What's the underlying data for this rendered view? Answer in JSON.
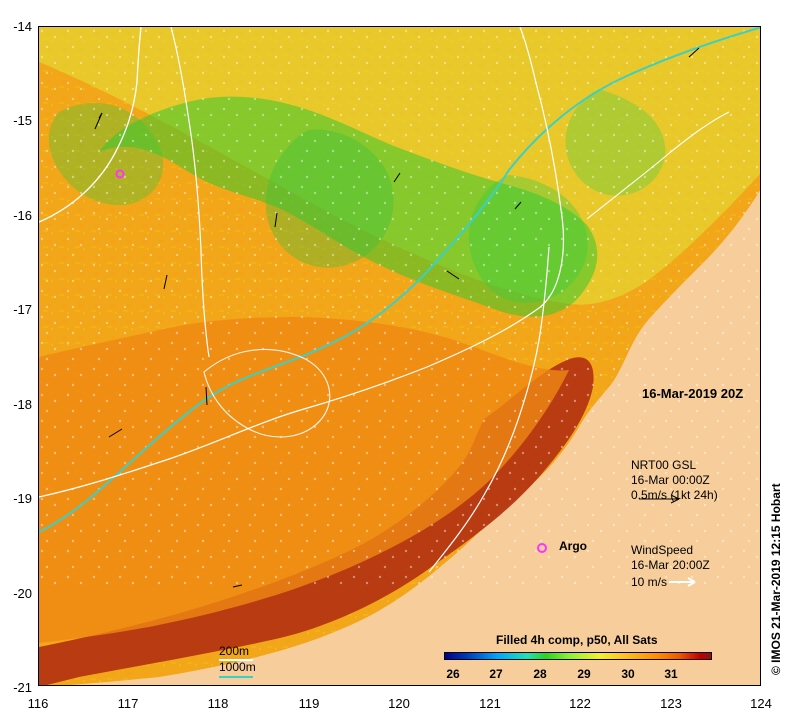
{
  "map": {
    "date_label": "16-Mar-2019 20Z",
    "composite_label": "Filled 4h comp, p50, All Sats",
    "argo_label": "Argo",
    "side_label": "© IMOS 21-Mar-2019 12:15 Hobart",
    "legend": {
      "gsl_title": "NRT00 GSL",
      "gsl_time": "16-Mar 00:00Z",
      "gsl_scale": "0.5m/s (1kt 24h)",
      "wind_title": "WindSpeed",
      "wind_time": "16-Mar 20:00Z",
      "wind_scale": "10 m/s",
      "contours": {
        "200m": "200m",
        "1000m": "1000m"
      }
    },
    "colors": {
      "land": "#f7ce9b",
      "coast_sea": "#8c1a10",
      "contour_200m": "#ffffff",
      "contour_1000m": "#39d0c7",
      "argo": "#ff33ff"
    }
  },
  "axes": {
    "y_ticks": [
      "-14",
      "-15",
      "-16",
      "-17",
      "-18",
      "-19",
      "-20",
      "-21"
    ],
    "x_ticks": [
      "116",
      "117",
      "118",
      "119",
      "120",
      "121",
      "122",
      "123",
      "124"
    ]
  },
  "colorbar": {
    "ticks": [
      "26",
      "27",
      "28",
      "29",
      "30",
      "31"
    ]
  }
}
